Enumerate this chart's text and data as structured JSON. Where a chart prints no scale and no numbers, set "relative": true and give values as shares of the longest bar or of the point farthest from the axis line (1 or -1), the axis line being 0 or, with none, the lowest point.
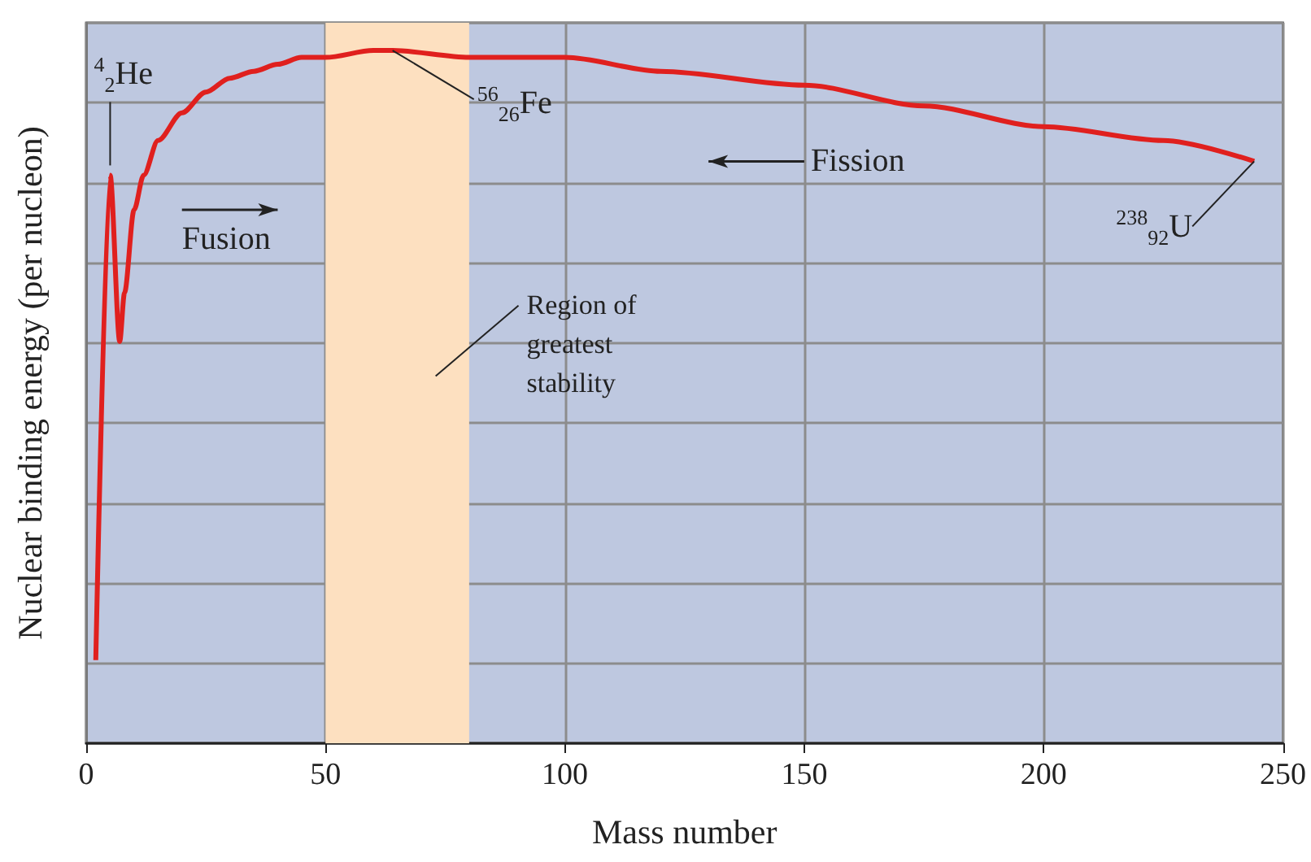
{
  "chart_data": {
    "type": "line",
    "relative": true,
    "xlabel": "Mass number",
    "ylabel": "Nuclear binding energy (per nucleon)",
    "x": [
      2,
      5,
      7,
      8,
      10,
      12,
      15,
      20,
      25,
      30,
      35,
      40,
      45,
      50,
      60,
      64,
      80,
      100,
      120,
      150,
      175,
      200,
      225,
      244
    ],
    "series": [
      {
        "color": "#e0201e",
        "values": [
          0.12,
          0.82,
          0.58,
          0.65,
          0.77,
          0.82,
          0.87,
          0.91,
          0.94,
          0.96,
          0.97,
          0.98,
          0.99,
          0.99,
          1,
          1,
          0.99,
          0.99,
          0.97,
          0.95,
          0.92,
          0.89,
          0.87,
          0.84
        ]
      }
    ],
    "xlim": [
      0,
      250
    ],
    "xticks": [
      0,
      50,
      100,
      150,
      200,
      250
    ],
    "grid": true,
    "marker": "none",
    "line_style": "solid",
    "bands": [
      {
        "axis": "x",
        "from": 50,
        "to": 80,
        "label": "Region of greatest stability",
        "color": "#fde0c0"
      }
    ],
    "annotations": [
      {
        "text": "$^{4}$$_{2}$He",
        "x": 5,
        "y": 0.82
      },
      {
        "text": "$^{56}$$_{26}$Fe",
        "x": 64,
        "y": 1
      },
      {
        "text": "$^{238}$$_{92}$U",
        "x": 244,
        "y": 0.84
      },
      "Fusion",
      "Fission"
    ]
  }
}
